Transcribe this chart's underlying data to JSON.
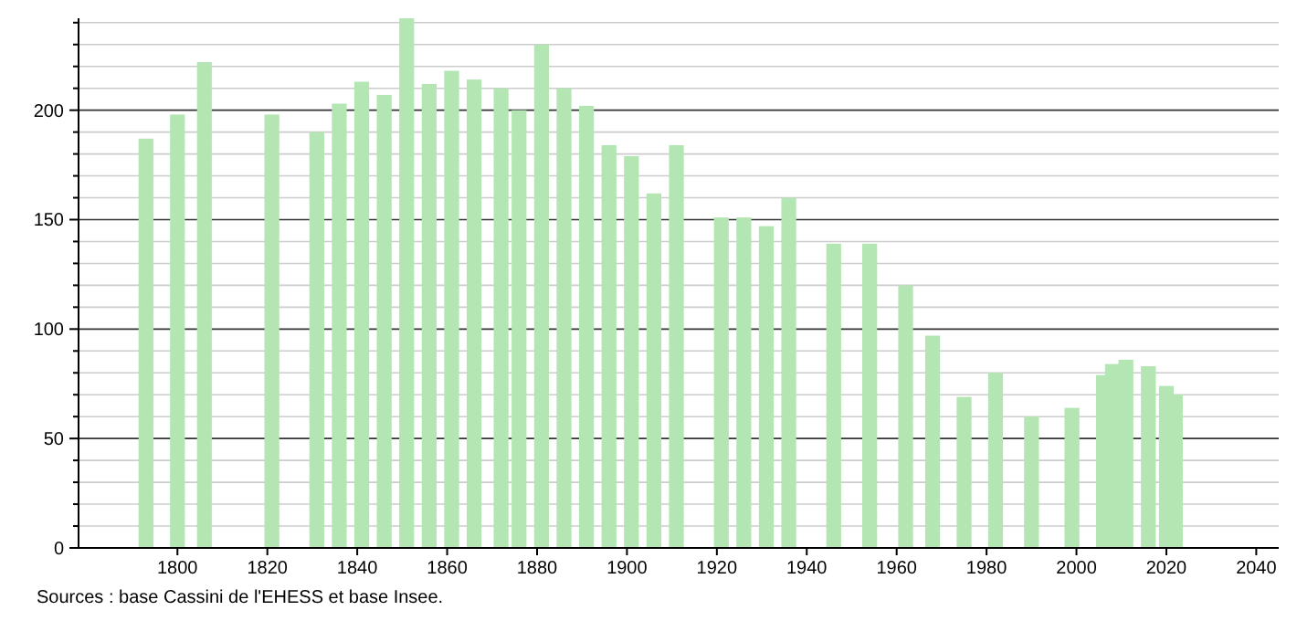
{
  "chart_data": {
    "type": "bar",
    "x": [
      1793,
      1800,
      1806,
      1821,
      1831,
      1836,
      1841,
      1846,
      1851,
      1856,
      1861,
      1866,
      1872,
      1876,
      1881,
      1886,
      1891,
      1896,
      1901,
      1906,
      1911,
      1921,
      1926,
      1931,
      1936,
      1946,
      1954,
      1962,
      1968,
      1975,
      1982,
      1990,
      1999,
      2006,
      2008,
      2011,
      2016,
      2020,
      2022
    ],
    "values": [
      187,
      198,
      222,
      198,
      190,
      203,
      213,
      207,
      242,
      212,
      218,
      214,
      210,
      200,
      230,
      210,
      202,
      184,
      179,
      162,
      184,
      151,
      151,
      147,
      160,
      139,
      139,
      120,
      97,
      69,
      80,
      60,
      64,
      79,
      84,
      86,
      83,
      74,
      70
    ],
    "color": "#b3e6b3",
    "xlim": [
      1778,
      2045
    ],
    "xticks": [
      1800,
      1820,
      1840,
      1860,
      1880,
      1900,
      1920,
      1940,
      1960,
      1980,
      2000,
      2020,
      2040
    ],
    "ylim": [
      0,
      242
    ],
    "yticks": [
      0,
      {
        "value": 10,
        "label": null
      },
      {
        "value": 20,
        "label": null
      },
      {
        "value": 30,
        "label": null
      },
      {
        "value": 40,
        "label": null
      },
      50,
      {
        "value": 60,
        "label": null
      },
      {
        "value": 70,
        "label": null
      },
      {
        "value": 80,
        "label": null
      },
      {
        "value": 90,
        "label": null
      },
      100,
      {
        "value": 110,
        "label": null
      },
      {
        "value": 120,
        "label": null
      },
      {
        "value": 130,
        "label": null
      },
      {
        "value": 140,
        "label": null
      },
      150,
      {
        "value": 160,
        "label": null
      },
      {
        "value": 170,
        "label": null
      },
      {
        "value": 180,
        "label": null
      },
      {
        "value": 190,
        "label": null
      },
      200,
      {
        "value": 210,
        "label": null
      },
      {
        "value": 220,
        "label": null
      },
      {
        "value": 230,
        "label": null
      },
      {
        "value": 240,
        "label": null
      }
    ],
    "grid": true,
    "annotations": [
      "Sources : base Cassini de l'EHESS et base Insee."
    ]
  }
}
